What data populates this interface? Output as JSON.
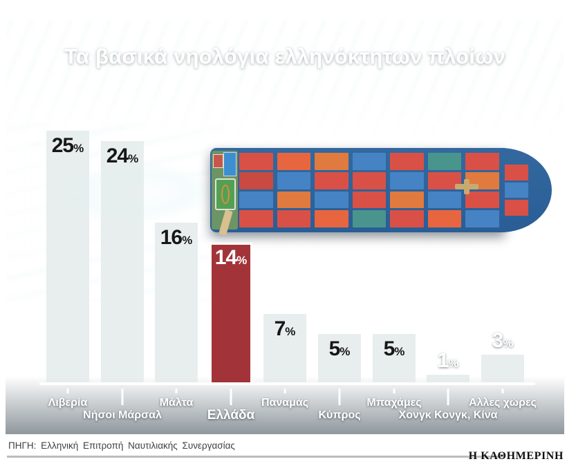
{
  "title": "Τα βασικά νηολόγια ελληνόκτητων πλοίων",
  "chart_data": {
    "type": "bar",
    "title": "Τα βασικά νηολόγια ελληνόκτητων πλοίων",
    "categories": [
      "Λιβερία",
      "Νήσοι Μάρσαλ",
      "Μάλτα",
      "Ελλάδα",
      "Παναμάς",
      "Κύπρος",
      "Μπαχάμες",
      "Χονγκ Κονγκ, Κίνα",
      "Αλλες χώρες"
    ],
    "values": [
      25,
      24,
      16,
      14,
      7,
      5,
      5,
      1,
      3
    ],
    "unit": "%",
    "xlabel": "",
    "ylabel": "",
    "ylim": [
      0,
      25
    ],
    "grid": false,
    "legend": false,
    "highlight_category": "Ελλάδα",
    "bar_color": "rgba(226,233,233,0.78)",
    "highlight_color": "#a23439",
    "value_label_inside_color": "#171717",
    "value_label_outside_color": "#ffffff"
  },
  "footer": {
    "source": "ΠΗΓΗ: Ελληνική Επιτροπή Ναυτιλιακής Συνεργασίας",
    "brand": "Η ΚΑΘΗΜΕΡΙΝΗ"
  },
  "colors": {
    "sea_dark": "#0c2c3c",
    "sea_light": "#2d6676",
    "hull_blue": "#2e64a0",
    "title_text": "#ffffff"
  }
}
